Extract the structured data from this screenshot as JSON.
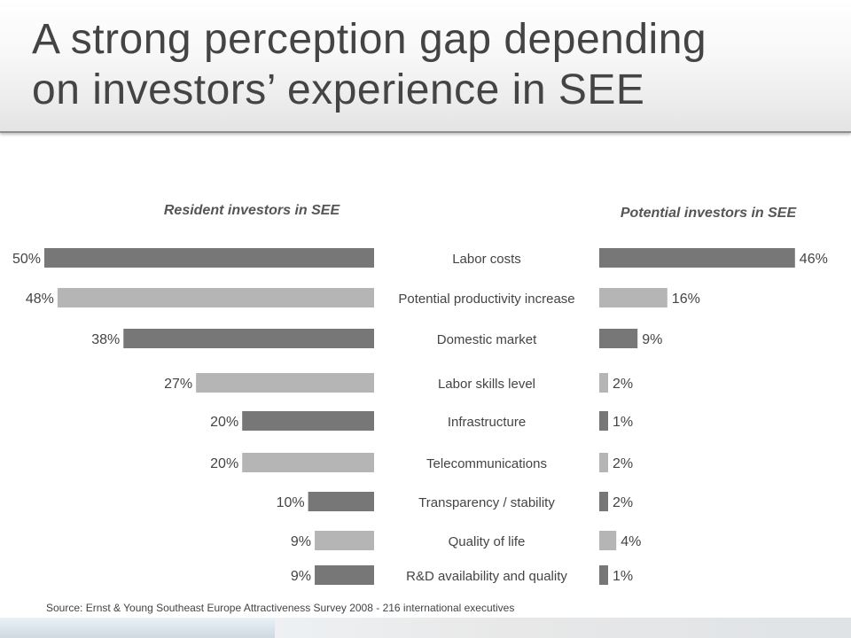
{
  "slide": {
    "title": "A strong perception gap depending on investors’ experience in SEE",
    "title_lines": [
      "A strong perception gap depending",
      "on investors’ experience in SEE"
    ]
  },
  "colors": {
    "dark_bar": "#777777",
    "light_bar": "#b5b5b5",
    "text": "#444444"
  },
  "chart_data": {
    "type": "bar",
    "orientation": "horizontal",
    "layout": "back-to-back",
    "categories": [
      "Labor costs",
      "Potential productivity increase",
      "Domestic market",
      "Labor skills level",
      "Infrastructure",
      "Telecommunications",
      "Transparency / stability",
      "Quality of life",
      "R&D availability and quality"
    ],
    "series": [
      {
        "name": "Resident investors in SEE",
        "side": "left",
        "values": [
          50,
          48,
          38,
          27,
          20,
          20,
          10,
          9,
          9
        ],
        "labels": [
          "50%",
          "48%",
          "38%",
          "27%",
          "20%",
          "20%",
          "10%",
          "9%",
          "9%"
        ]
      },
      {
        "name": "Potential investors in SEE",
        "side": "right",
        "values": [
          46,
          16,
          9,
          2,
          1,
          2,
          2,
          4,
          1
        ],
        "labels": [
          "46%",
          "16%",
          "9%",
          "2%",
          "1%",
          "2%",
          "2%",
          "4%",
          "1%"
        ]
      }
    ],
    "bar_shades": [
      "dark",
      "light",
      "dark",
      "light",
      "dark",
      "light",
      "dark",
      "light",
      "dark"
    ],
    "unit": "%",
    "source": "Source: Ernst & Young Southeast Europe Attractiveness Survey 2008 - 216 international executives"
  }
}
